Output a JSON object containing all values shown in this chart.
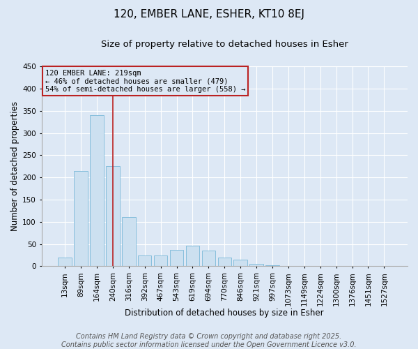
{
  "title1": "120, EMBER LANE, ESHER, KT10 8EJ",
  "title2": "Size of property relative to detached houses in Esher",
  "xlabel": "Distribution of detached houses by size in Esher",
  "ylabel": "Number of detached properties",
  "categories": [
    "13sqm",
    "89sqm",
    "164sqm",
    "240sqm",
    "316sqm",
    "392sqm",
    "467sqm",
    "543sqm",
    "619sqm",
    "694sqm",
    "770sqm",
    "846sqm",
    "921sqm",
    "997sqm",
    "1073sqm",
    "1149sqm",
    "1224sqm",
    "1300sqm",
    "1376sqm",
    "1451sqm",
    "1527sqm"
  ],
  "values": [
    20,
    215,
    340,
    225,
    110,
    25,
    25,
    37,
    46,
    36,
    20,
    15,
    5,
    2,
    1,
    1,
    1,
    0,
    0,
    0,
    1
  ],
  "bar_color": "#cce0f0",
  "bar_edge_color": "#7ab8d8",
  "vline_color": "#bb2222",
  "annotation_text": "120 EMBER LANE: 219sqm\n← 46% of detached houses are smaller (479)\n54% of semi-detached houses are larger (558) →",
  "ylim": [
    0,
    450
  ],
  "yticks": [
    0,
    50,
    100,
    150,
    200,
    250,
    300,
    350,
    400,
    450
  ],
  "bg_color": "#dde8f5",
  "grid_color": "#ffffff",
  "footer_text": "Contains HM Land Registry data © Crown copyright and database right 2025.\nContains public sector information licensed under the Open Government Licence v3.0.",
  "title_fontsize": 11,
  "subtitle_fontsize": 9.5,
  "label_fontsize": 8.5,
  "tick_fontsize": 7.5,
  "footer_fontsize": 7,
  "annot_fontsize": 7.5
}
